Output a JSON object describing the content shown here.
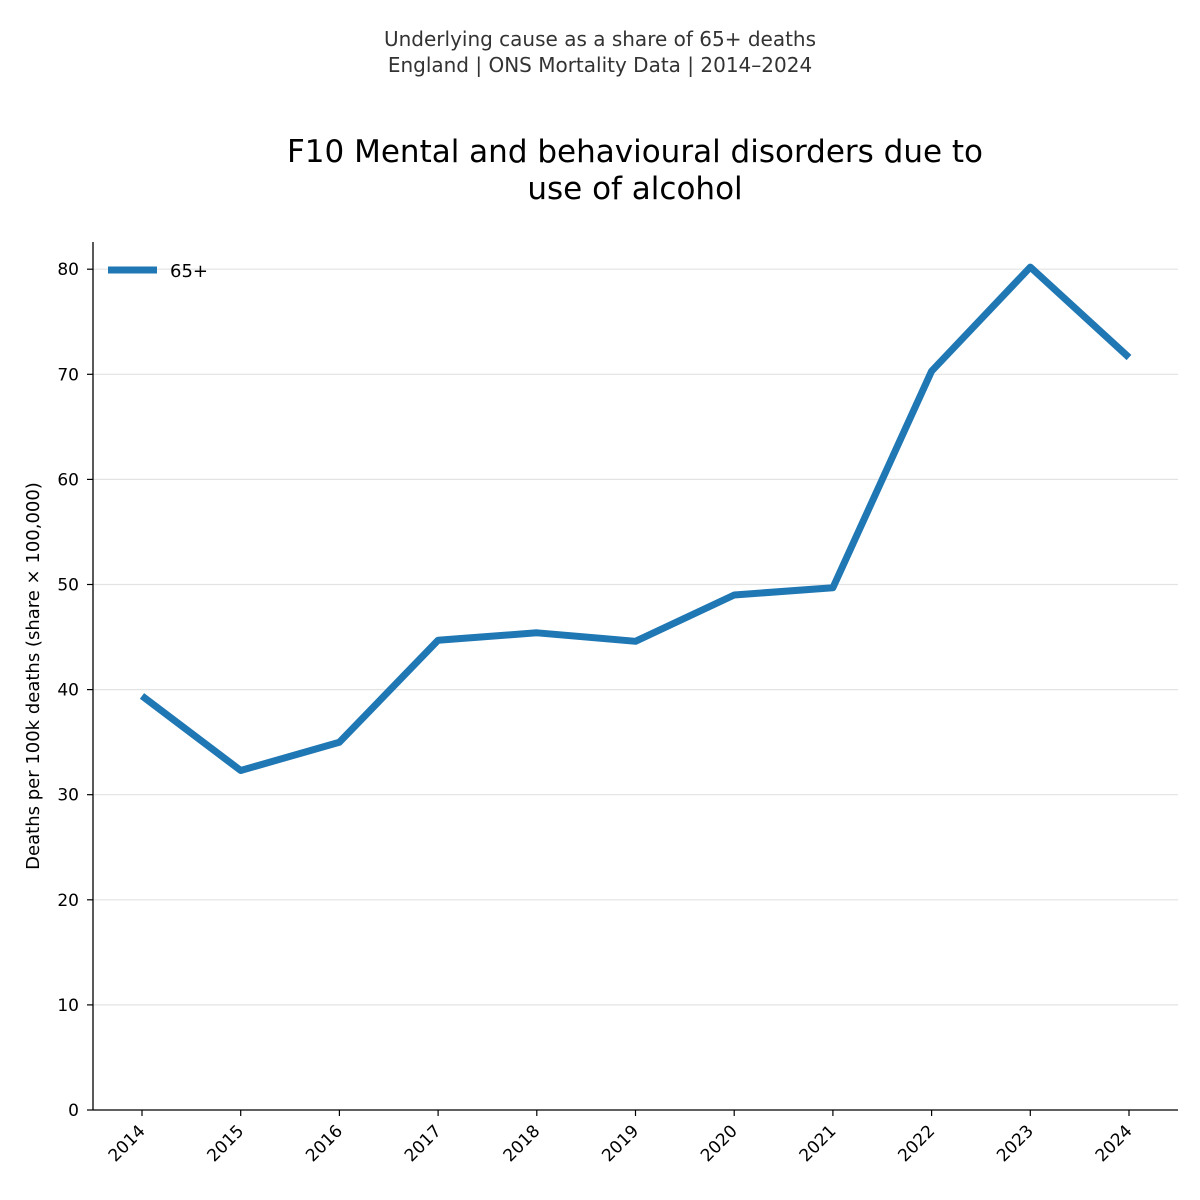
{
  "header": {
    "subtitle_line1": "Underlying cause as a share of 65+ deaths",
    "subtitle_line2": "England | ONS Mortality Data | 2014–2024"
  },
  "chart_data": {
    "type": "line",
    "title_line1": "F10 Mental and behavioural disorders due to",
    "title_line2": "use of alcohol",
    "xlabel": "",
    "ylabel": "Deaths per 100k deaths (share × 100,000)",
    "categories": [
      "2014",
      "2015",
      "2016",
      "2017",
      "2018",
      "2019",
      "2020",
      "2021",
      "2022",
      "2023",
      "2024"
    ],
    "series": [
      {
        "name": "65+",
        "color": "#1f77b4",
        "values": [
          39.4,
          32.3,
          35.0,
          44.7,
          45.4,
          44.6,
          49.0,
          49.7,
          70.3,
          80.2,
          71.6
        ]
      }
    ],
    "ylim": [
      0,
      82.5
    ],
    "yticks": [
      0,
      10,
      20,
      30,
      40,
      50,
      60,
      70,
      80
    ],
    "grid": "horizontal",
    "legend_position": "top-left"
  }
}
